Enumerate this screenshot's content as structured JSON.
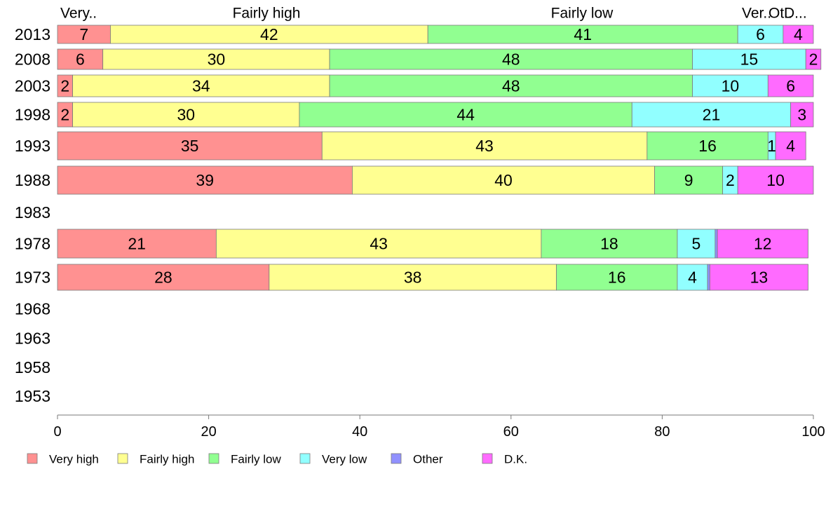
{
  "chart_data": {
    "type": "bar",
    "orientation": "horizontal",
    "stacked": true,
    "title": "",
    "xlabel": "",
    "ylabel": "",
    "xlim": [
      0,
      100
    ],
    "x_ticks": [
      "0",
      "20",
      "40",
      "60",
      "80",
      "100"
    ],
    "grid": false,
    "legend_position": "bottom",
    "top_labels": [
      "Very..",
      "Fairly high",
      "Fairly low",
      "Ver..",
      "Ot..",
      "D..."
    ],
    "categories": [
      "2013",
      "2008",
      "2003",
      "1998",
      "1993",
      "1988",
      "1983",
      "1978",
      "1973",
      "1968",
      "1963",
      "1958",
      "1953"
    ],
    "series": [
      {
        "name": "Very high",
        "color": "#ff9191",
        "values": [
          7,
          6,
          2,
          2,
          35,
          39,
          null,
          21,
          28,
          null,
          null,
          null,
          null
        ]
      },
      {
        "name": "Fairly high",
        "color": "#ffff91",
        "values": [
          42,
          30,
          34,
          30,
          43,
          40,
          null,
          43,
          38,
          null,
          null,
          null,
          null
        ]
      },
      {
        "name": "Fairly low",
        "color": "#91ff91",
        "values": [
          41,
          48,
          48,
          44,
          16,
          9,
          null,
          18,
          16,
          null,
          null,
          null,
          null
        ]
      },
      {
        "name": "Very low",
        "color": "#91ffff",
        "values": [
          6,
          15,
          10,
          21,
          1,
          2,
          null,
          5,
          4,
          null,
          null,
          null,
          null
        ]
      },
      {
        "name": "Other",
        "color": "#9191ff",
        "values": [
          0,
          0,
          0,
          0,
          0,
          0,
          null,
          0.3,
          0.3,
          null,
          null,
          null,
          null
        ]
      },
      {
        "name": "D.K.",
        "color": "#ff6bff",
        "values": [
          4,
          2,
          6,
          3,
          4,
          10,
          null,
          12,
          13,
          null,
          null,
          null,
          null
        ]
      }
    ]
  }
}
